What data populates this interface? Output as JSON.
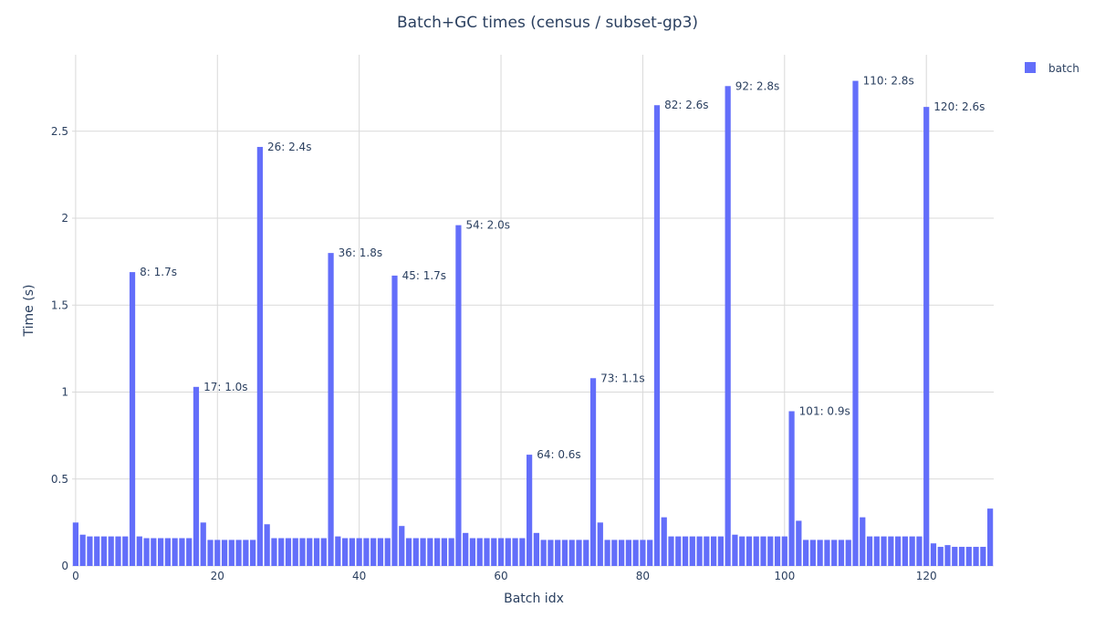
{
  "chart_data": {
    "type": "bar",
    "title": "Batch+GC times (census / subset-gp3)",
    "xlabel": "Batch idx",
    "ylabel": "Time (s)",
    "xlim": [
      -0.5,
      129.5
    ],
    "ylim": [
      0,
      2.94
    ],
    "x_ticks": [
      0,
      20,
      40,
      60,
      80,
      100,
      120
    ],
    "y_ticks": [
      0,
      0.5,
      1,
      1.5,
      2,
      2.5
    ],
    "y_tick_labels": [
      "0",
      "0.5",
      "1",
      "1.5",
      "2",
      "2.5"
    ],
    "grid": true,
    "legend_position": "top-right",
    "colors": {
      "bar": "#636efa",
      "grid": "#d9d9d9",
      "text": "#2a3f5f"
    },
    "series": [
      {
        "name": "batch",
        "values": [
          0.25,
          0.18,
          0.17,
          0.17,
          0.17,
          0.17,
          0.17,
          0.17,
          1.69,
          0.17,
          0.16,
          0.16,
          0.16,
          0.16,
          0.16,
          0.16,
          0.16,
          1.03,
          0.25,
          0.15,
          0.15,
          0.15,
          0.15,
          0.15,
          0.15,
          0.15,
          2.41,
          0.24,
          0.16,
          0.16,
          0.16,
          0.16,
          0.16,
          0.16,
          0.16,
          0.16,
          1.8,
          0.17,
          0.16,
          0.16,
          0.16,
          0.16,
          0.16,
          0.16,
          0.16,
          1.67,
          0.23,
          0.16,
          0.16,
          0.16,
          0.16,
          0.16,
          0.16,
          0.16,
          1.96,
          0.19,
          0.16,
          0.16,
          0.16,
          0.16,
          0.16,
          0.16,
          0.16,
          0.16,
          0.64,
          0.19,
          0.15,
          0.15,
          0.15,
          0.15,
          0.15,
          0.15,
          0.15,
          1.08,
          0.25,
          0.15,
          0.15,
          0.15,
          0.15,
          0.15,
          0.15,
          0.15,
          2.65,
          0.28,
          0.17,
          0.17,
          0.17,
          0.17,
          0.17,
          0.17,
          0.17,
          0.17,
          2.76,
          0.18,
          0.17,
          0.17,
          0.17,
          0.17,
          0.17,
          0.17,
          0.17,
          0.89,
          0.26,
          0.15,
          0.15,
          0.15,
          0.15,
          0.15,
          0.15,
          0.15,
          2.79,
          0.28,
          0.17,
          0.17,
          0.17,
          0.17,
          0.17,
          0.17,
          0.17,
          0.17,
          2.64,
          0.13,
          0.11,
          0.12,
          0.11,
          0.11,
          0.11,
          0.11,
          0.11,
          0.33
        ]
      }
    ],
    "annotations": [
      {
        "x": 8,
        "y": 1.69,
        "text": "8: 1.7s"
      },
      {
        "x": 17,
        "y": 1.03,
        "text": "17: 1.0s"
      },
      {
        "x": 26,
        "y": 2.41,
        "text": "26: 2.4s"
      },
      {
        "x": 36,
        "y": 1.8,
        "text": "36: 1.8s"
      },
      {
        "x": 45,
        "y": 1.67,
        "text": "45: 1.7s"
      },
      {
        "x": 54,
        "y": 1.96,
        "text": "54: 2.0s"
      },
      {
        "x": 64,
        "y": 0.64,
        "text": "64: 0.6s"
      },
      {
        "x": 73,
        "y": 1.08,
        "text": "73: 1.1s"
      },
      {
        "x": 82,
        "y": 2.65,
        "text": "82: 2.6s"
      },
      {
        "x": 92,
        "y": 2.76,
        "text": "92: 2.8s"
      },
      {
        "x": 101,
        "y": 0.89,
        "text": "101: 0.9s"
      },
      {
        "x": 110,
        "y": 2.79,
        "text": "110: 2.8s"
      },
      {
        "x": 120,
        "y": 2.64,
        "text": "120: 2.6s"
      }
    ]
  }
}
